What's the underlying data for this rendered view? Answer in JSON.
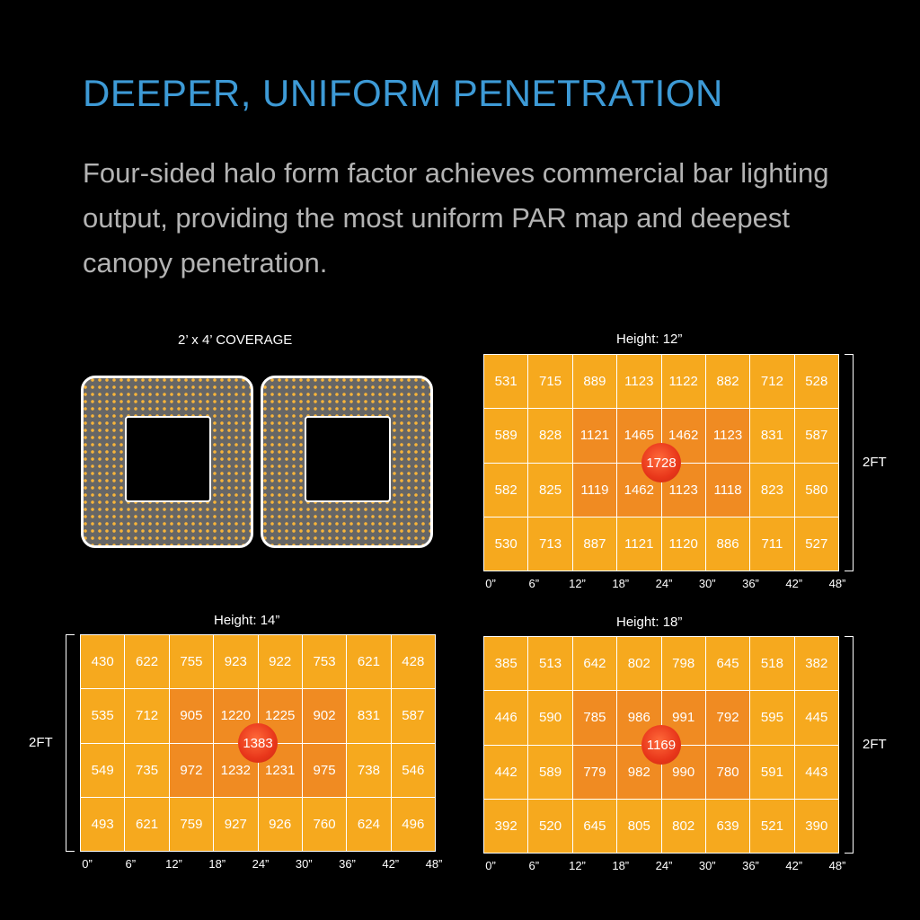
{
  "header": {
    "title": "DEEPER, UNIFORM PENETRATION",
    "subtitle": "Four-sided halo form factor achieves commercial bar lighting output, providing the most uniform PAR map and deepest canopy penetration."
  },
  "coverage_label": "2’ x 4’ COVERAGE",
  "x_ticks": [
    "0”",
    "6”",
    "12”",
    "18”",
    "24”",
    "30”",
    "36”",
    "42”",
    "48”"
  ],
  "side_label": "2FT",
  "maps": [
    {
      "label": "Height: 12”",
      "peak": "1728",
      "rows": [
        [
          "531",
          "715",
          "889",
          "1123",
          "1122",
          "882",
          "712",
          "528"
        ],
        [
          "589",
          "828",
          "1121",
          "1465",
          "1462",
          "1123",
          "831",
          "587"
        ],
        [
          "582",
          "825",
          "1119",
          "1462",
          "1123",
          "1118",
          "823",
          "580"
        ],
        [
          "530",
          "713",
          "887",
          "1121",
          "1120",
          "886",
          "711",
          "527"
        ]
      ]
    },
    {
      "label": "Height: 14”",
      "peak": "1383",
      "rows": [
        [
          "430",
          "622",
          "755",
          "923",
          "922",
          "753",
          "621",
          "428"
        ],
        [
          "535",
          "712",
          "905",
          "1220",
          "1225",
          "902",
          "831",
          "587"
        ],
        [
          "549",
          "735",
          "972",
          "1232",
          "1231",
          "975",
          "738",
          "546"
        ],
        [
          "493",
          "621",
          "759",
          "927",
          "926",
          "760",
          "624",
          "496"
        ]
      ]
    },
    {
      "label": "Height: 18”",
      "peak": "1169",
      "rows": [
        [
          "385",
          "513",
          "642",
          "802",
          "798",
          "645",
          "518",
          "382"
        ],
        [
          "446",
          "590",
          "785",
          "986",
          "991",
          "792",
          "595",
          "445"
        ],
        [
          "442",
          "589",
          "779",
          "982",
          "990",
          "780",
          "591",
          "443"
        ],
        [
          "392",
          "520",
          "645",
          "805",
          "802",
          "639",
          "521",
          "390"
        ]
      ]
    }
  ]
}
